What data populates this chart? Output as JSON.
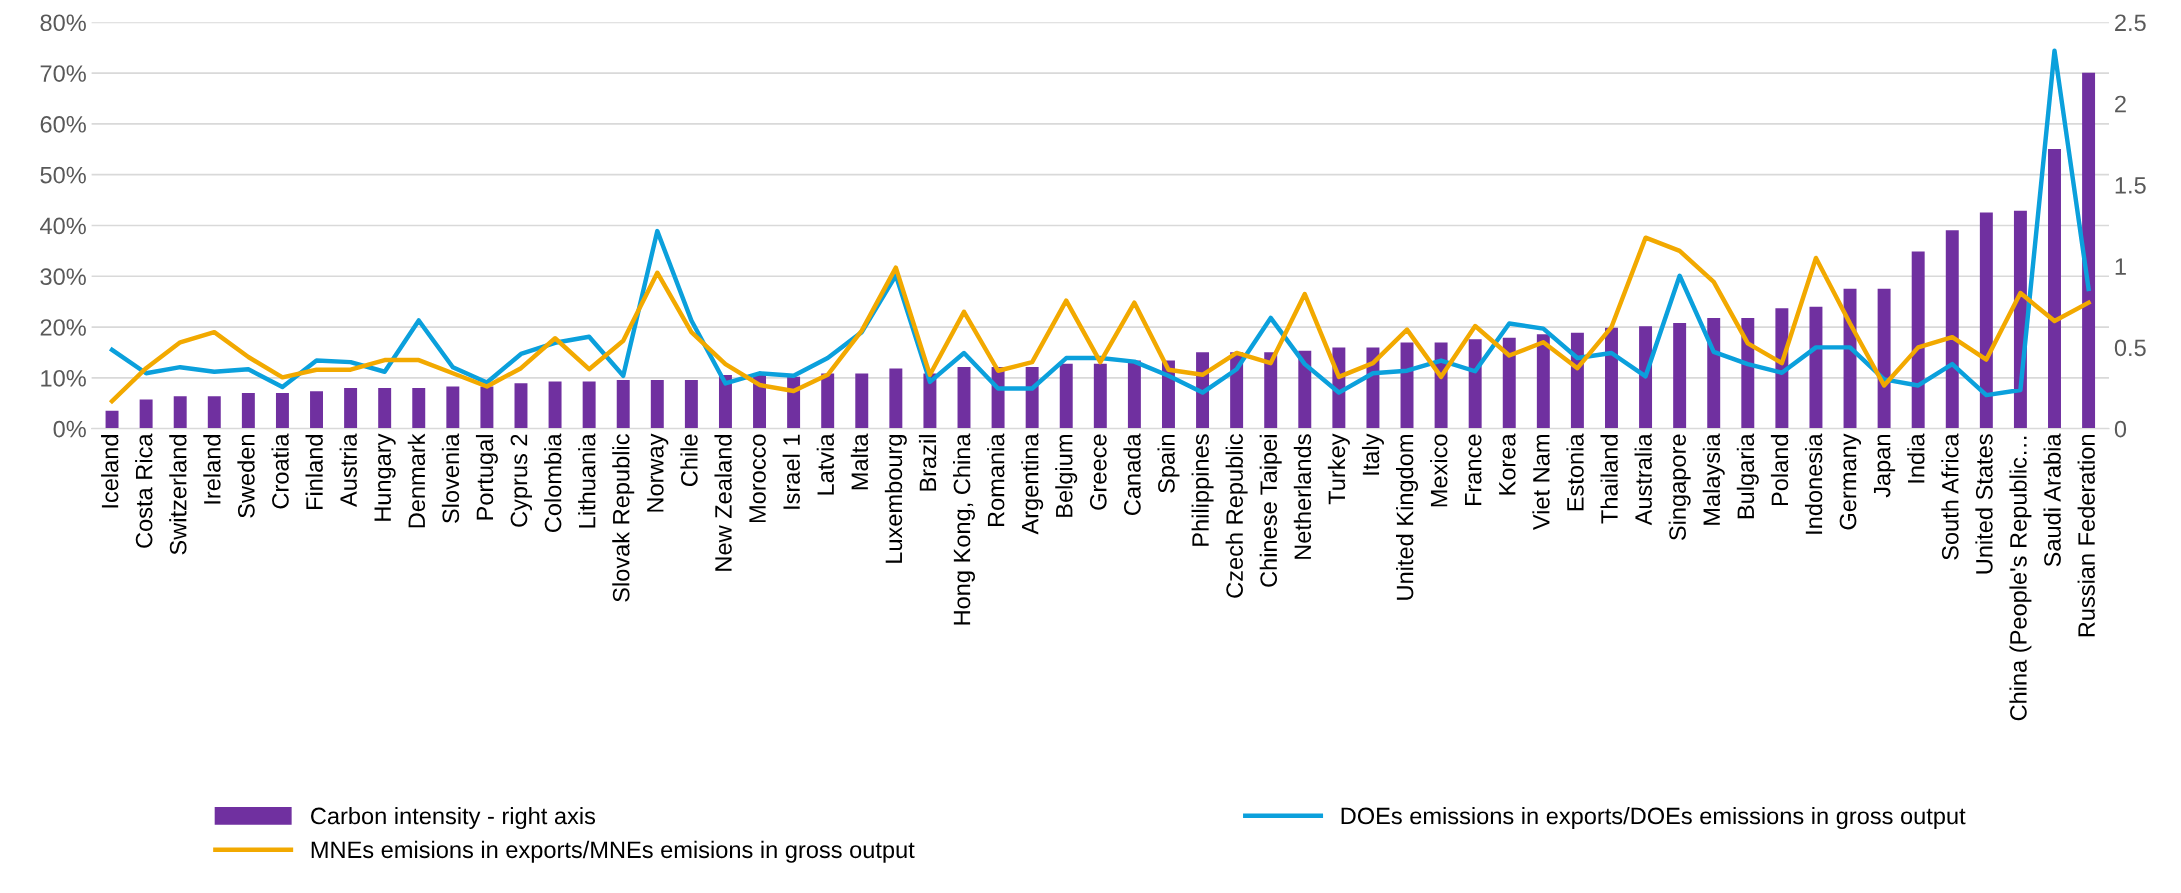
{
  "chart_data": {
    "type": "bar",
    "categories": [
      "Iceland",
      "Costa Rica",
      "Switzerland",
      "Ireland",
      "Sweden",
      "Croatia",
      "Finland",
      "Austria",
      "Hungary",
      "Denmark",
      "Slovenia",
      "Portugal",
      "Cyprus 2",
      "Colombia",
      "Lithuania",
      "Slovak Republic",
      "Norway",
      "Chile",
      "New Zealand",
      "Morocco",
      "Israel 1",
      "Latvia",
      "Malta",
      "Luxembourg",
      "Brazil",
      "Hong Kong, China",
      "Romania",
      "Argentina",
      "Belgium",
      "Greece",
      "Canada",
      "Spain",
      "Philippines",
      "Czech Republic",
      "Chinese Taipei",
      "Netherlands",
      "Turkey",
      "Italy",
      "United Kingdom",
      "Mexico",
      "France",
      "Korea",
      "Viet Nam",
      "Estonia",
      "Thailand",
      "Australia",
      "Singapore",
      "Malaysia",
      "Bulgaria",
      "Poland",
      "Indonesia",
      "Germany",
      "Japan",
      "India",
      "South Africa",
      "United States",
      "China (People's Republic…",
      "Saudi Arabia",
      "Russian Federation"
    ],
    "series": [
      {
        "name": "Carbon intensity - right axis",
        "axis": "y2",
        "color": "#7030a0",
        "values": [
          0.11,
          0.18,
          0.2,
          0.2,
          0.22,
          0.22,
          0.23,
          0.25,
          0.25,
          0.25,
          0.26,
          0.26,
          0.28,
          0.29,
          0.29,
          0.3,
          0.3,
          0.3,
          0.33,
          0.33,
          0.32,
          0.34,
          0.34,
          0.37,
          0.34,
          0.38,
          0.38,
          0.38,
          0.4,
          0.4,
          0.42,
          0.42,
          0.47,
          0.47,
          0.47,
          0.48,
          0.5,
          0.5,
          0.53,
          0.53,
          0.55,
          0.56,
          0.58,
          0.59,
          0.62,
          0.63,
          0.65,
          0.68,
          0.68,
          0.74,
          0.75,
          0.86,
          0.86,
          1.09,
          1.22,
          1.33,
          1.34,
          1.72,
          2.19
        ]
      },
      {
        "name": "DOEs emissions in exports/DOEs emissions in gross output",
        "type": "line",
        "color": "#0ba0dc",
        "values": [
          15.5,
          10.9,
          12.1,
          11.2,
          11.7,
          8.2,
          13.4,
          13.1,
          11.2,
          21.3,
          12.1,
          9.1,
          14.7,
          16.9,
          18.1,
          10.4,
          38.9,
          21.3,
          8.9,
          10.9,
          10.4,
          13.9,
          19,
          30.2,
          9.2,
          14.9,
          7.9,
          7.9,
          13.9,
          13.9,
          13.2,
          10.4,
          7.1,
          11.7,
          21.8,
          12.7,
          7.1,
          10.9,
          11.4,
          13.4,
          11.3,
          20.7,
          19.7,
          13.9,
          14.9,
          10.3,
          30.1,
          15.1,
          12.7,
          11,
          16,
          16,
          9.7,
          8.5,
          12.7,
          6.6,
          7.6,
          74.4,
          27.5
        ]
      },
      {
        "name": "MNEs emisions in exports/MNEs emisions in gross output",
        "type": "line",
        "color": "#f2a900",
        "values": [
          5.4,
          11.9,
          17,
          19,
          14.1,
          10.1,
          11.6,
          11.6,
          13.5,
          13.5,
          10.9,
          8.3,
          11.9,
          17.8,
          11.7,
          17.3,
          30.7,
          19,
          12.7,
          8.6,
          7.4,
          10.6,
          19.3,
          31.7,
          10.6,
          23,
          11.4,
          13.1,
          25.2,
          13.1,
          24.8,
          11.6,
          10.6,
          14.9,
          12.9,
          26.5,
          10.2,
          12.9,
          19.5,
          10.2,
          20.2,
          14.4,
          17,
          11.9,
          20,
          37.6,
          35,
          28.9,
          16.8,
          12.9,
          33.6,
          20.7,
          8.5,
          16,
          18,
          13.6,
          26.7,
          21.2,
          24.8
        ]
      }
    ],
    "ylim": [
      0,
      80
    ],
    "yticks": [
      {
        "value": 0,
        "label": "0%"
      },
      {
        "value": 10,
        "label": "10%"
      },
      {
        "value": 20,
        "label": "20%"
      },
      {
        "value": 30,
        "label": "30%"
      },
      {
        "value": 40,
        "label": "40%"
      },
      {
        "value": 50,
        "label": "50%"
      },
      {
        "value": 60,
        "label": "60%"
      },
      {
        "value": 70,
        "label": "70%"
      },
      {
        "value": 80,
        "label": "80%"
      }
    ],
    "y2lim": [
      0,
      2.5
    ],
    "y2ticks": [
      0,
      0.5,
      1,
      1.5,
      2,
      2.5
    ],
    "grid": "y",
    "legend": "bottom"
  }
}
